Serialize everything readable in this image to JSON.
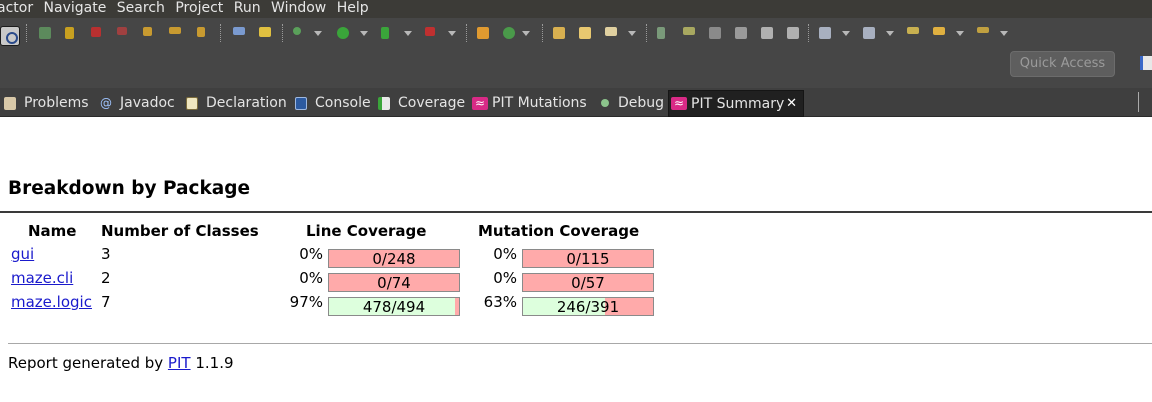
{
  "menubar": {
    "items": [
      "actor",
      "Navigate",
      "Search",
      "Project",
      "Run",
      "Window",
      "Help"
    ]
  },
  "toolbar": {
    "quick_access_label": "Quick Access",
    "icons": [
      "pin-icon",
      "skip-breakpoints-icon",
      "resume-icon",
      "suspend-icon",
      "terminate-icon",
      "disconnect-icon",
      "step-into-icon",
      "step-over-icon",
      "step-return-icon",
      "drop-to-frame-icon",
      "use-step-filters-icon",
      "debug-icon",
      "run-icon",
      "coverage-icon",
      "pit-run-icon",
      "new-icon",
      "refresh-icon",
      "open-type-icon",
      "open-task-icon",
      "search-icon",
      "annotation-icon",
      "highlighter-icon",
      "back-icon",
      "forward-icon"
    ]
  },
  "tabs": [
    {
      "label": "Problems",
      "icon": "problems-icon"
    },
    {
      "label": "Javadoc",
      "icon": "javadoc-icon"
    },
    {
      "label": "Declaration",
      "icon": "declaration-icon"
    },
    {
      "label": "Console",
      "icon": "console-icon"
    },
    {
      "label": "Coverage",
      "icon": "coverage-icon"
    },
    {
      "label": "PIT Mutations",
      "icon": "pit-icon"
    },
    {
      "label": "Debug",
      "icon": "debug-icon"
    },
    {
      "label": "PIT Summary",
      "icon": "pit-icon",
      "active": true
    }
  ],
  "report": {
    "heading": "Breakdown by Package",
    "columns": {
      "name": "Name",
      "classes": "Number of Classes",
      "line": "Line Coverage",
      "mutation": "Mutation Coverage"
    },
    "rows": [
      {
        "name": "gui",
        "classes": "3",
        "line_pct": "0%",
        "line_text": "0/248",
        "line_fraction": 0.0,
        "mut_pct": "0%",
        "mut_text": "0/115",
        "mut_fraction": 0.0
      },
      {
        "name": "maze.cli",
        "classes": "2",
        "line_pct": "0%",
        "line_text": "0/74",
        "line_fraction": 0.0,
        "mut_pct": "0%",
        "mut_text": "0/57",
        "mut_fraction": 0.0
      },
      {
        "name": "maze.logic",
        "classes": "7",
        "line_pct": "97%",
        "line_text": "478/494",
        "line_fraction": 0.97,
        "mut_pct": "63%",
        "mut_text": "246/391",
        "mut_fraction": 0.63
      }
    ],
    "footer_prefix": "Report generated by",
    "footer_link": "PIT",
    "footer_version": "1.1.9"
  },
  "colors": {
    "bar_covered": "#ddffdd",
    "bar_uncovered": "#ffaaaa",
    "link": "#1a1acc",
    "pit_icon": "#d92a86"
  }
}
